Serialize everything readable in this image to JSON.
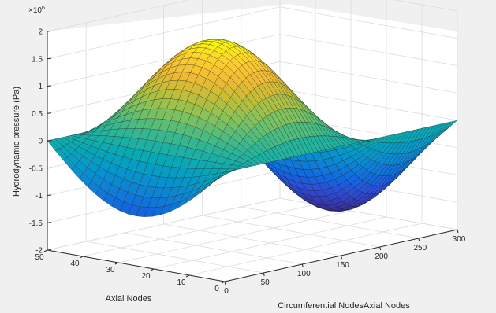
{
  "chart_data": {
    "type": "surface",
    "xlabel": "Circumferential NodesAxial Nodes",
    "ylabel": "Axial Nodes",
    "zlabel": "Hydrodynamic pressure (Pa)",
    "z_exponent_label": "×10",
    "z_exponent_power": "6",
    "xlim": [
      0,
      300
    ],
    "ylim": [
      0,
      50
    ],
    "zlim": [
      -2000000,
      2000000
    ],
    "x_ticks": [
      0,
      50,
      100,
      150,
      200,
      250,
      300
    ],
    "y_ticks": [
      0,
      10,
      20,
      30,
      40,
      50
    ],
    "z_ticks": [
      -2,
      -1.5,
      -1,
      -0.5,
      0,
      0.5,
      1,
      1.5,
      2
    ],
    "z_tick_labels": [
      "-2",
      "-1.5",
      "-1",
      "-0.5",
      "0",
      "0.5",
      "1",
      "1.5",
      "2"
    ],
    "grid": true,
    "colormap": "parula",
    "surface_function": "z = 1.8e6 * sin(2*pi*x/300 - 0.65) * sin(pi*y/50)",
    "x_count": 300,
    "y_count": 50,
    "peak_value": 1800000,
    "trough_value": -1800000
  }
}
